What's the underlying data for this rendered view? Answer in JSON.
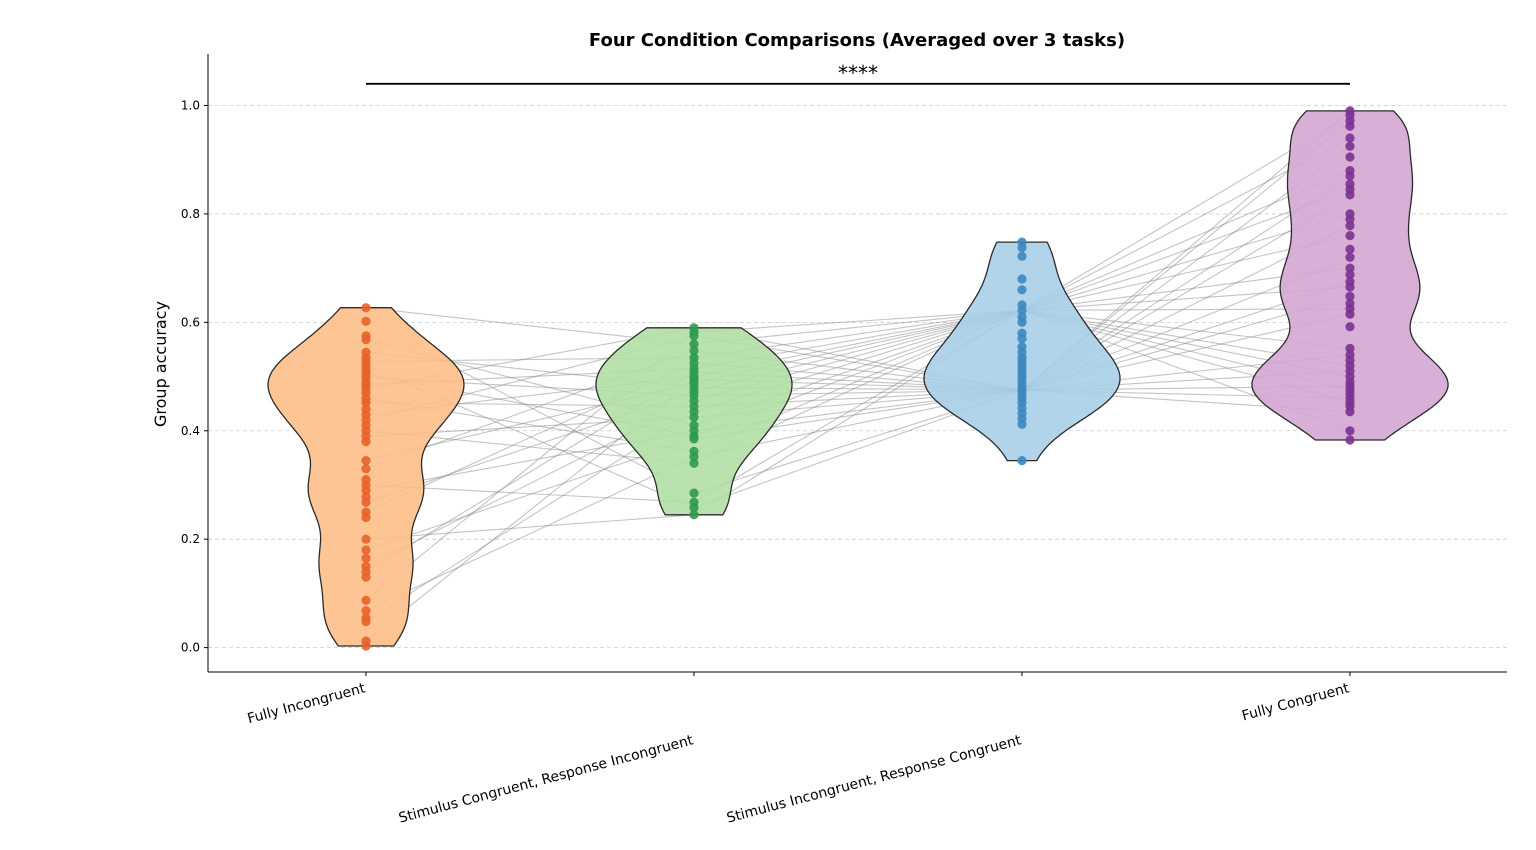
{
  "chart_data": {
    "type": "violin",
    "title": "Four Condition Comparisons (Averaged over 3 tasks)",
    "xlabel": "",
    "ylabel": "Group accuracy",
    "ylim": [
      -0.045,
      1.095
    ],
    "yticks": [
      "0.0",
      "0.2",
      "0.4",
      "0.6",
      "0.8",
      "1.0"
    ],
    "grid": "y-dashed",
    "significance": {
      "text": "****",
      "from": "Fully Incongruent",
      "to": "Fully Congruent",
      "y": 1.04
    },
    "categories": [
      "Fully Incongruent",
      "Stimulus Congruent, Response Incongruent",
      "Stimulus Incongruent, Response Congruent",
      "Fully Congruent"
    ],
    "series": [
      {
        "color": "#fdbf87",
        "point_color": "#e8622a",
        "min": 0.003,
        "max": 0.627,
        "values": [
          0.627,
          0.602,
          0.575,
          0.568,
          0.545,
          0.535,
          0.528,
          0.52,
          0.512,
          0.505,
          0.498,
          0.49,
          0.485,
          0.478,
          0.47,
          0.46,
          0.452,
          0.44,
          0.43,
          0.42,
          0.41,
          0.4,
          0.39,
          0.38,
          0.345,
          0.33,
          0.31,
          0.3,
          0.29,
          0.278,
          0.268,
          0.25,
          0.24,
          0.2,
          0.18,
          0.165,
          0.15,
          0.14,
          0.13,
          0.087,
          0.068,
          0.055,
          0.048,
          0.012,
          0.003
        ]
      },
      {
        "color": "#b2dfa6",
        "point_color": "#2e9a50",
        "min": 0.245,
        "max": 0.59,
        "values": [
          0.59,
          0.582,
          0.575,
          0.56,
          0.548,
          0.535,
          0.525,
          0.515,
          0.508,
          0.5,
          0.495,
          0.488,
          0.48,
          0.472,
          0.465,
          0.455,
          0.445,
          0.435,
          0.425,
          0.41,
          0.4,
          0.39,
          0.385,
          0.362,
          0.352,
          0.34,
          0.285,
          0.268,
          0.258,
          0.245
        ]
      },
      {
        "color": "#a9cfe8",
        "point_color": "#3c87c0",
        "min": 0.345,
        "max": 0.748,
        "values": [
          0.748,
          0.738,
          0.722,
          0.68,
          0.66,
          0.632,
          0.622,
          0.61,
          0.6,
          0.58,
          0.57,
          0.555,
          0.545,
          0.535,
          0.528,
          0.52,
          0.512,
          0.505,
          0.498,
          0.49,
          0.482,
          0.475,
          0.468,
          0.46,
          0.452,
          0.442,
          0.432,
          0.422,
          0.412,
          0.345
        ]
      },
      {
        "color": "#d4a6d3",
        "point_color": "#7b3192",
        "min": 0.383,
        "max": 0.99,
        "values": [
          0.99,
          0.982,
          0.972,
          0.962,
          0.94,
          0.925,
          0.905,
          0.88,
          0.87,
          0.855,
          0.845,
          0.835,
          0.8,
          0.79,
          0.778,
          0.76,
          0.735,
          0.72,
          0.7,
          0.688,
          0.675,
          0.665,
          0.648,
          0.635,
          0.625,
          0.615,
          0.592,
          0.552,
          0.54,
          0.53,
          0.52,
          0.51,
          0.5,
          0.49,
          0.482,
          0.475,
          0.468,
          0.46,
          0.452,
          0.445,
          0.435,
          0.4,
          0.383
        ]
      }
    ]
  }
}
